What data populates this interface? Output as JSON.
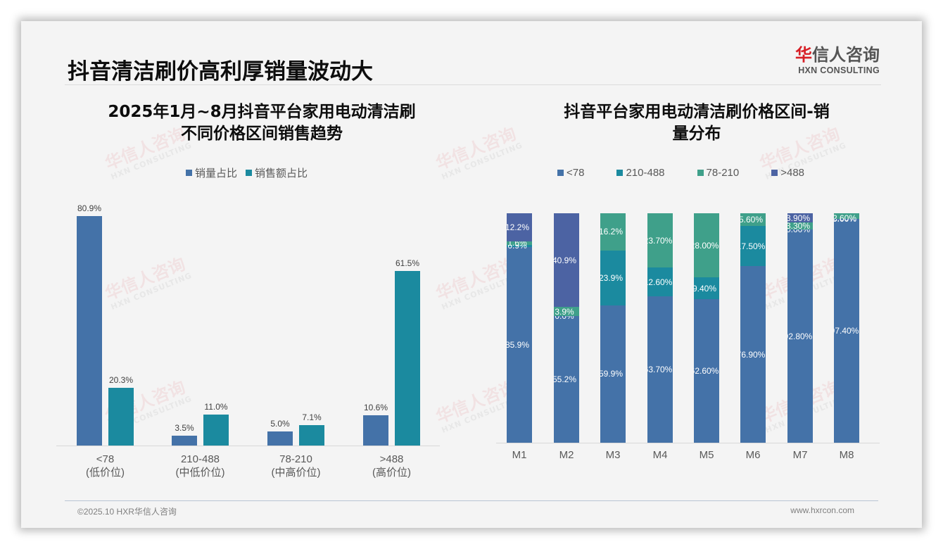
{
  "page": {
    "title": "抖音清洁刷价高利厚销量波动大",
    "logo_cn_accent": "华",
    "logo_cn_rest": "信人咨询",
    "logo_en": "HXN CONSULTING",
    "watermark_cn": "华信人咨询",
    "watermark_en": "HXN CONSULTING",
    "footer_left": "©2025.10 HXR华信人咨询",
    "footer_right": "www.hxrcon.com"
  },
  "colors": {
    "volume": "#4472a8",
    "revenue": "#1b8a9f",
    "lt78": "#4472a8",
    "r210_488": "#1b8a9f",
    "r78_210": "#3fa08a",
    "gt488": "#4c63a3"
  },
  "chart_data": [
    {
      "type": "bar",
      "title": "2025年1月~8月抖音平台家用电动清洁刷不同价格区间销售趋势",
      "title_line1": "2025年1月~8月抖音平台家用电动清洁刷",
      "title_line2": "不同价格区间销售趋势",
      "categories": [
        "<78",
        "210-488",
        "78-210",
        ">488"
      ],
      "category_sublabels": [
        "(低价位)",
        "(中低价位)",
        "(中高价位)",
        "(高价位)"
      ],
      "series": [
        {
          "name": "销量占比",
          "values": [
            80.9,
            3.5,
            5.0,
            10.6
          ],
          "labels": [
            "80.9%",
            "3.5%",
            "5.0%",
            "10.6%"
          ]
        },
        {
          "name": "销售额占比",
          "values": [
            20.3,
            11.0,
            7.1,
            61.5
          ],
          "labels": [
            "20.3%",
            "11.0%",
            "7.1%",
            "61.5%"
          ]
        }
      ],
      "xlabel": "",
      "ylabel": "",
      "ylim": [
        0,
        85
      ],
      "grid": false,
      "legend_position": "top"
    },
    {
      "type": "bar",
      "stacked": true,
      "title": "抖音平台家用电动清洁刷价格区间-销量分布",
      "title_line1": "抖音平台家用电动清洁刷价格区间-销",
      "title_line2": "量分布",
      "categories": [
        "M1",
        "M2",
        "M3",
        "M4",
        "M5",
        "M6",
        "M7",
        "M8"
      ],
      "legend": [
        "<78",
        "210-488",
        "78-210",
        ">488"
      ],
      "series": [
        {
          "name": "<78",
          "values": [
            85.9,
            55.2,
            59.9,
            63.7,
            62.6,
            76.9,
            92.8,
            97.4
          ],
          "labels": [
            "85.9%",
            "55.2%",
            "59.9%",
            "63.70%",
            "62.60%",
            "76.90%",
            "92.80%",
            "97.40%"
          ]
        },
        {
          "name": "210-488",
          "values": [
            0.9,
            0.0,
            23.9,
            12.6,
            9.4,
            17.5,
            0.0,
            0.0
          ],
          "labels": [
            "0.9%",
            "0.0%",
            "23.9%",
            "12.60%",
            "9.40%",
            "17.50%",
            "0.00%",
            "0.00%"
          ]
        },
        {
          "name": "78-210",
          "values": [
            1.6,
            3.9,
            16.2,
            23.7,
            28.0,
            5.6,
            3.3,
            2.6
          ],
          "labels": [
            "1.6%",
            "3.9%",
            "16.2%",
            "23.70%",
            "28.00%",
            "5.60%",
            "3.30%",
            "2.60%"
          ]
        },
        {
          "name": ">488",
          "values": [
            12.2,
            40.9,
            0,
            0,
            0,
            0,
            3.9,
            0
          ],
          "labels": [
            "12.2%",
            "40.9%",
            "",
            "",
            "",
            "",
            "3.90%",
            ""
          ]
        }
      ],
      "xlabel": "",
      "ylabel": "",
      "ylim": [
        0,
        100
      ],
      "grid": false,
      "legend_position": "top"
    }
  ]
}
